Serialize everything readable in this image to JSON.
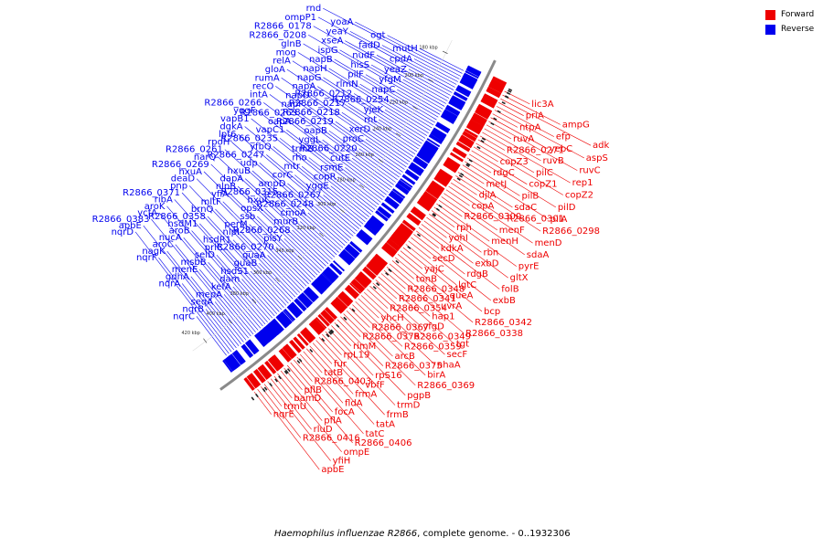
{
  "caption": {
    "organism": "Haemophilus influenzae R2866",
    "suffix": ", complete genome. - 0..1932306"
  },
  "legend": {
    "items": [
      {
        "label": "Forward",
        "color": "#ee0000"
      },
      {
        "label": "Reverse",
        "color": "#0000ee"
      }
    ]
  },
  "colors": {
    "forward": "#ee0000",
    "reverse": "#0000ee",
    "backbone": "#8a8a8a"
  },
  "ticks": [
    "180 kbp",
    "200 kbp",
    "220 kbp",
    "240 kbp",
    "260 kbp",
    "280 kbp",
    "300 kbp",
    "320 kbp",
    "340 kbp",
    "360 kbp",
    "380 kbp",
    "400 kbp",
    "420 kbp"
  ],
  "forward_genes": [
    "lic3A",
    "ampG",
    "adk",
    "priA",
    "efp",
    "aspS",
    "ntpA",
    "yebC",
    "ruvC",
    "ruvA",
    "ruvB",
    "rep1",
    "R2866_0271",
    "pilC",
    "copZ2",
    "copZ3",
    "copZ1",
    "pilD",
    "rdgC",
    "pilB",
    "pilA",
    "metJ",
    "sdaC",
    "R2866_0298",
    "djlA",
    "R2866_0301",
    "menD",
    "copA",
    "menF",
    "sdaA",
    "R2866_0300",
    "menH",
    "pyrE",
    "rph",
    "rbn",
    "gltX",
    "yohI",
    "exbD",
    "folB",
    "kdkA",
    "rdgB",
    "exbB",
    "secD",
    "lgtC",
    "bcp",
    "yajC",
    "queA",
    "R2866_0342",
    "tonB",
    "uvrA",
    "R2866_0338",
    "R2866_0348",
    "hap1",
    "tgt",
    "R2866_0341",
    "yfgD",
    "secF",
    "R2866_0354",
    "R2866_0349",
    "nhaA",
    "yhcH",
    "R2866_0359",
    "birA",
    "R2866_0367",
    "arcB",
    "R2866_0369",
    "R2866_0376",
    "R2866_0375",
    "pgpB",
    "rimM",
    "rpS16",
    "trmD",
    "rpL19",
    "vbfF",
    "frmB",
    "fur",
    "frmA",
    "tatA",
    "tatB",
    "fldA",
    "tatC",
    "R2866_0403",
    "focA",
    "R2866_0406",
    "pflB",
    "pflA",
    "ompE",
    "bamD",
    "rluD",
    "yfiH",
    "trmU",
    "R2866_0416",
    "apbE",
    "nqrE"
  ],
  "reverse_genes": [
    "mutH",
    "ogt",
    "yoaA",
    "rnd",
    "cpdA",
    "fadD",
    "yeaY",
    "ompP1",
    "yeaZ",
    "nudF",
    "xseA",
    "R2866_0178",
    "yfgM",
    "hisS",
    "ispG",
    "R2866_0208",
    "napC",
    "pilF",
    "napB",
    "glnB",
    "R2866_0254",
    "rlmN",
    "napH",
    "mog",
    "yjeK",
    "R2866_0212",
    "napG",
    "relA",
    "rnt",
    "R2866_0217",
    "napA",
    "gloA",
    "xerD",
    "R2866_0218",
    "napD",
    "rumA",
    "proC",
    "R2866_0219",
    "napF",
    "recO",
    "R2866_0220",
    "oapB",
    "R2866_0263",
    "intA",
    "cutE",
    "yggL",
    "oapA",
    "R2866_0266",
    "rsmE",
    "trmB",
    "vapC1",
    "yqgF",
    "copR",
    "rho",
    "R2866_0235",
    "vapB1",
    "yggE",
    "mtr",
    "yfbQ",
    "dgkA",
    "R2866_0267",
    "corC",
    "R2866_0247",
    "lpt6",
    "R2866_0248",
    "ampD",
    "udp",
    "rpoH",
    "cmoA",
    "R2866_0315",
    "hxuB",
    "R2866_0261",
    "murB",
    "hxuC",
    "dapA",
    "narQ",
    "R2866_0268",
    "opsX",
    "nlpB",
    "R2866_0269",
    "plsY",
    "ssb",
    "yfiA",
    "hxuA",
    "R2866_0270",
    "perM",
    "mltF",
    "deaD",
    "guaA",
    "nlpI",
    "brnQ",
    "pnp",
    "guaB",
    "hsdR1",
    "R2866_0358",
    "R2866_0371",
    "hsdS1",
    "prlC",
    "hsdM1",
    "ribA",
    "dam",
    "seID",
    "aroB",
    "aroK",
    "kefA",
    "msbB",
    "nucA",
    "ycfA",
    "mepA",
    "menE",
    "aroC",
    "R2866_0383",
    "seqA",
    "gdhA",
    "nagK",
    "apbE",
    "nqrB",
    "nqrA",
    "nqrF",
    "nqrD",
    "nqrC"
  ]
}
